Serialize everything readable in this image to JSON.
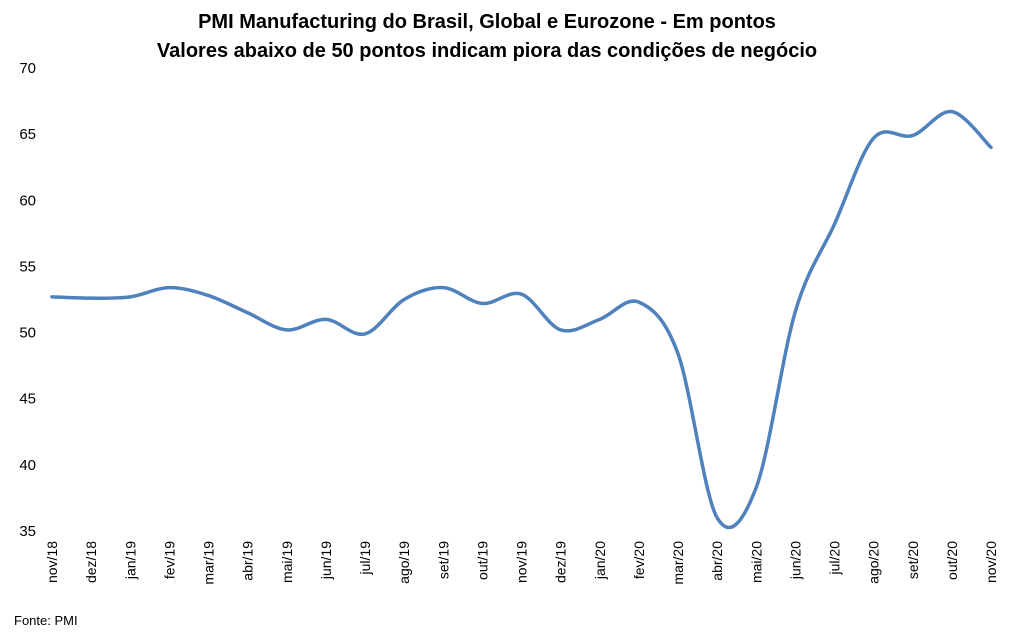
{
  "chart_data": {
    "type": "line",
    "title": "PMI Manufacturing do Brasil, Global e Eurozone - Em pontos",
    "subtitle": "Valores abaixo de 50 pontos indicam piora das condições de negócio",
    "xlabel": "",
    "ylabel": "",
    "ylim": [
      35,
      70
    ],
    "yticks": [
      35,
      40,
      45,
      50,
      55,
      60,
      65,
      70
    ],
    "grid": false,
    "legend": "none",
    "categories": [
      "nov/18",
      "dez/18",
      "jan/19",
      "fev/19",
      "mar/19",
      "abr/19",
      "mai/19",
      "jun/19",
      "jul/19",
      "ago/19",
      "set/19",
      "out/19",
      "nov/19",
      "dez/19",
      "jan/20",
      "fev/20",
      "mar/20",
      "abr/20",
      "mai/20",
      "jun/20",
      "jul/20",
      "ago/20",
      "set/20",
      "out/20",
      "nov/20"
    ],
    "series": [
      {
        "color": "#4F81BD",
        "values": [
          52.7,
          52.6,
          52.7,
          53.4,
          52.8,
          51.5,
          50.2,
          51.0,
          49.9,
          52.5,
          53.4,
          52.2,
          52.9,
          50.2,
          51.0,
          52.3,
          48.4,
          36.0,
          38.3,
          51.6,
          58.2,
          64.7,
          64.9,
          66.7,
          64.0
        ]
      }
    ],
    "source": "Fonte: PMI"
  }
}
